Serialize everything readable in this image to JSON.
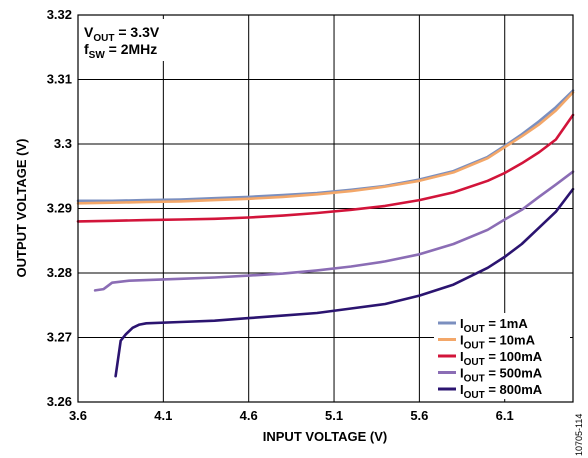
{
  "chart_data": {
    "type": "line",
    "title": "",
    "xlabel": "INPUT VOLTAGE (V)",
    "ylabel": "OUTPUT VOLTAGE (V)",
    "xlim": [
      3.6,
      6.5
    ],
    "ylim": [
      3.26,
      3.32
    ],
    "xticks": [
      "3.6",
      "4.1",
      "4.6",
      "5.1",
      "5.6",
      "6.1"
    ],
    "xtick_values": [
      3.6,
      4.1,
      4.6,
      5.1,
      5.6,
      6.1
    ],
    "yticks": [
      "3.26",
      "3.27",
      "3.28",
      "3.29",
      "3.3",
      "3.31",
      "3.32"
    ],
    "ytick_values": [
      3.26,
      3.27,
      3.28,
      3.29,
      3.3,
      3.31,
      3.32
    ],
    "grid": true,
    "legend_position": "bottom-right",
    "annotations": {
      "line1_main": "V",
      "line1_sub": "OUT",
      "line1_rest": " = 3.3V",
      "line2_main": "f",
      "line2_sub": "SW",
      "line2_rest": " = 2MHz"
    },
    "figure_id": "10705-114",
    "legend_prefix_main": "I",
    "legend_prefix_sub": "OUT",
    "series": [
      {
        "name": "1mA",
        "legend_label": " = 1mA",
        "color": "#7b8fbf",
        "x": [
          3.6,
          3.8,
          4.0,
          4.2,
          4.4,
          4.6,
          4.8,
          5.0,
          5.2,
          5.4,
          5.6,
          5.8,
          6.0,
          6.1,
          6.2,
          6.3,
          6.4,
          6.5
        ],
        "y": [
          3.2912,
          3.2912,
          3.2913,
          3.2914,
          3.2916,
          3.2918,
          3.2921,
          3.2924,
          3.2929,
          3.2935,
          3.2945,
          3.2958,
          3.298,
          3.2997,
          3.3015,
          3.3035,
          3.3057,
          3.3083
        ]
      },
      {
        "name": "10mA",
        "legend_label": " = 10mA",
        "color": "#f3a769",
        "x": [
          3.6,
          3.8,
          4.0,
          4.2,
          4.4,
          4.6,
          4.8,
          5.0,
          5.2,
          5.4,
          5.6,
          5.8,
          6.0,
          6.1,
          6.2,
          6.3,
          6.4,
          6.5
        ],
        "y": [
          3.2908,
          3.2909,
          3.291,
          3.2911,
          3.2913,
          3.2915,
          3.2918,
          3.2922,
          3.2927,
          3.2934,
          3.2943,
          3.2956,
          3.2978,
          3.2995,
          3.3012,
          3.303,
          3.3052,
          3.308
        ]
      },
      {
        "name": "100mA",
        "legend_label": " = 100mA",
        "color": "#d2143a",
        "x": [
          3.6,
          3.8,
          4.0,
          4.2,
          4.4,
          4.6,
          4.8,
          5.0,
          5.2,
          5.4,
          5.6,
          5.8,
          6.0,
          6.1,
          6.2,
          6.3,
          6.4,
          6.5
        ],
        "y": [
          3.288,
          3.2881,
          3.2882,
          3.2883,
          3.2884,
          3.2886,
          3.2889,
          3.2893,
          3.2898,
          3.2904,
          3.2913,
          3.2925,
          3.2943,
          3.2955,
          3.297,
          3.2987,
          3.3007,
          3.3045
        ]
      },
      {
        "name": "500mA",
        "legend_label": " = 500mA",
        "color": "#8b6db5",
        "x": [
          3.7,
          3.75,
          3.8,
          3.9,
          4.0,
          4.2,
          4.4,
          4.6,
          4.8,
          5.0,
          5.2,
          5.4,
          5.6,
          5.8,
          6.0,
          6.1,
          6.2,
          6.3,
          6.4,
          6.5
        ],
        "y": [
          3.2773,
          3.2775,
          3.2785,
          3.2788,
          3.2789,
          3.2791,
          3.2793,
          3.2796,
          3.2799,
          3.2804,
          3.281,
          3.2818,
          3.2829,
          3.2845,
          3.2867,
          3.2883,
          3.2898,
          3.2918,
          3.2937,
          3.2957
        ]
      },
      {
        "name": "800mA",
        "legend_label": " = 800mA",
        "color": "#2b1470",
        "x": [
          3.82,
          3.85,
          3.88,
          3.92,
          3.96,
          4.0,
          4.2,
          4.4,
          4.6,
          4.8,
          5.0,
          5.2,
          5.4,
          5.6,
          5.8,
          6.0,
          6.1,
          6.2,
          6.3,
          6.4,
          6.5
        ],
        "y": [
          3.264,
          3.2695,
          3.2705,
          3.2715,
          3.272,
          3.2722,
          3.2724,
          3.2726,
          3.273,
          3.2734,
          3.2738,
          3.2745,
          3.2752,
          3.2765,
          3.2782,
          3.2808,
          3.2825,
          3.2845,
          3.287,
          3.2895,
          3.293
        ]
      }
    ]
  }
}
